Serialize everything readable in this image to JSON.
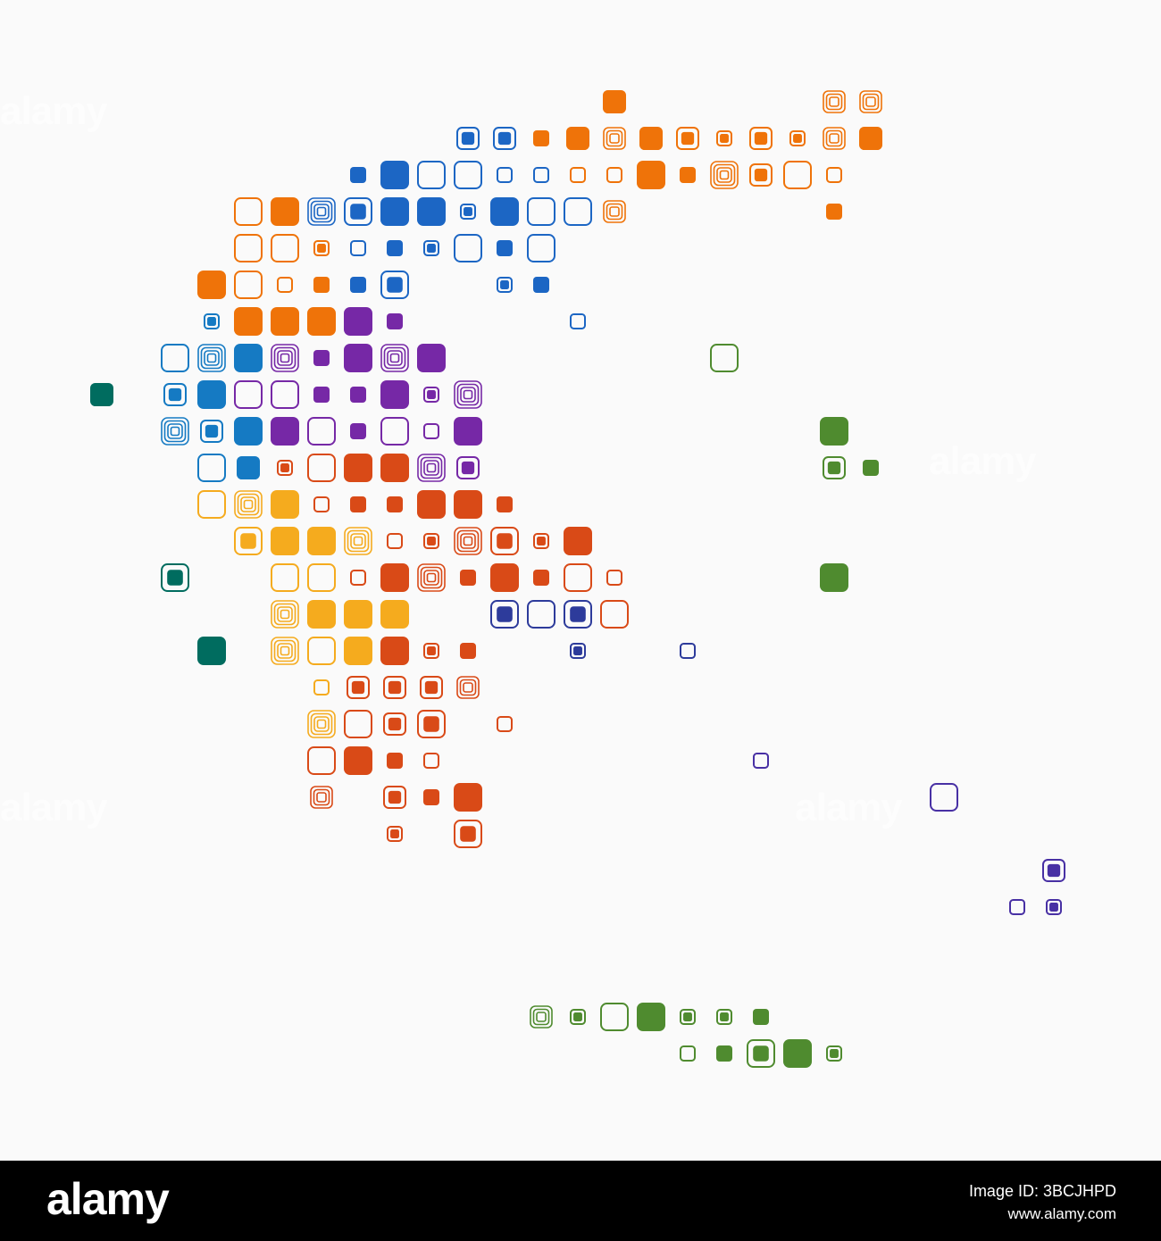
{
  "map": {
    "region_colors": {
      "northeast": "#ef7309",
      "north": "#1c66c4",
      "west": "#157ac3",
      "center": "#7628a6",
      "south_center": "#d94a17",
      "peninsula": "#f5ab1e",
      "islands_west": "#006c5f",
      "islands_east": "#4f8b2f",
      "islands_southeast": "#4830a4",
      "cluster": "#2d3b9b"
    }
  },
  "watermark": {
    "text": "alamy"
  },
  "footer": {
    "logo": "alamy",
    "image_id": "Image ID: 3BCJHPD",
    "url": "www.alamy.com"
  }
}
